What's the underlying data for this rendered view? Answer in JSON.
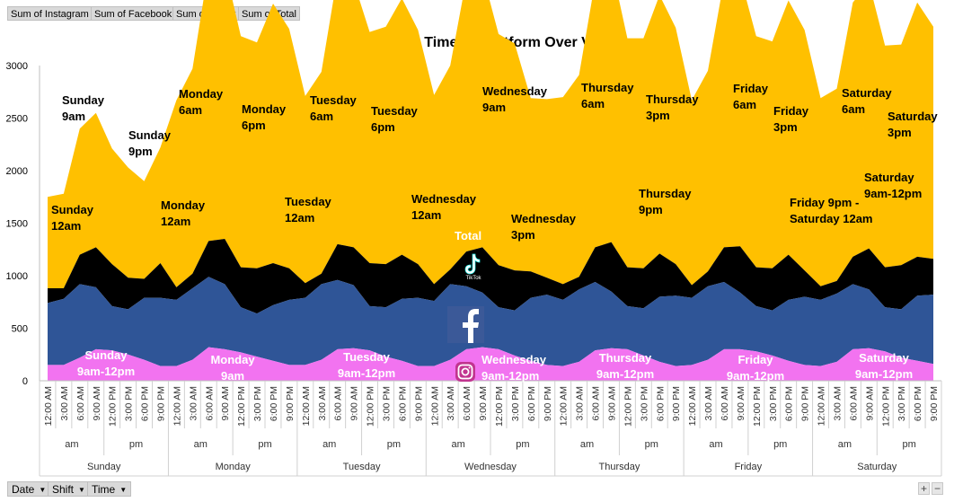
{
  "field_buttons": [
    "Sum of Instagram",
    "Sum of Facebook",
    "Sum of Tiktok",
    "Sum of Total"
  ],
  "row_buttons": [
    "Date",
    "Shift",
    "Time"
  ],
  "zoom": {
    "plus": "+",
    "minus": "−"
  },
  "chart_data": {
    "type": "area",
    "stacked": true,
    "title": "Most Active Time by Platform Over View",
    "xlabel": "",
    "ylabel": "",
    "ylim": [
      0,
      3000
    ],
    "yticks": [
      0,
      500,
      1000,
      1500,
      2000,
      2500,
      3000
    ],
    "grid": false,
    "legend": "none",
    "days": [
      "Sunday",
      "Monday",
      "Tuesday",
      "Wednesday",
      "Thursday",
      "Friday",
      "Saturday"
    ],
    "shifts": [
      "am",
      "pm"
    ],
    "times": [
      "12:00 AM",
      "3:00 AM",
      "6:00 AM",
      "9:00 AM",
      "12:00 PM",
      "3:00 PM",
      "6:00 PM",
      "9:00 PM"
    ],
    "series": [
      {
        "name": "Instagram",
        "color": "#f273f0",
        "values": [
          150,
          150,
          220,
          300,
          290,
          250,
          200,
          140,
          140,
          200,
          320,
          300,
          270,
          230,
          190,
          150,
          150,
          200,
          300,
          310,
          290,
          230,
          190,
          140,
          140,
          200,
          300,
          320,
          300,
          240,
          190,
          150,
          140,
          180,
          290,
          310,
          300,
          240,
          180,
          140,
          150,
          200,
          300,
          300,
          280,
          240,
          190,
          150,
          140,
          180,
          300,
          310,
          280,
          220,
          190,
          160
        ]
      },
      {
        "name": "Facebook",
        "color": "#2f5597",
        "values": [
          590,
          630,
          700,
          590,
          420,
          430,
          590,
          650,
          630,
          680,
          670,
          620,
          430,
          410,
          530,
          620,
          640,
          720,
          660,
          600,
          420,
          470,
          590,
          650,
          620,
          720,
          600,
          520,
          400,
          430,
          600,
          670,
          630,
          690,
          650,
          540,
          410,
          450,
          620,
          670,
          640,
          700,
          640,
          540,
          430,
          430,
          580,
          650,
          630,
          650,
          620,
          560,
          420,
          460,
          620,
          660
        ]
      },
      {
        "name": "Tiktok",
        "color": "#000000",
        "values": [
          140,
          100,
          280,
          380,
          400,
          300,
          180,
          330,
          120,
          140,
          340,
          430,
          380,
          430,
          400,
          300,
          140,
          100,
          340,
          360,
          410,
          410,
          420,
          320,
          160,
          140,
          330,
          430,
          400,
          380,
          250,
          160,
          150,
          120,
          330,
          470,
          370,
          380,
          410,
          300,
          120,
          140,
          330,
          440,
          370,
          400,
          430,
          250,
          130,
          120,
          260,
          390,
          380,
          420,
          370,
          340
        ]
      },
      {
        "name": "Total",
        "color": "#ffc000",
        "values": [
          870,
          900,
          1200,
          1280,
          1100,
          1050,
          930,
          1100,
          1780,
          1950,
          2600,
          2590,
          2200,
          2150,
          2470,
          2280,
          1780,
          1920,
          2560,
          2530,
          2200,
          2260,
          2440,
          2230,
          1800,
          1940,
          2590,
          2610,
          2200,
          2160,
          1650,
          1700,
          1780,
          1920,
          2530,
          2640,
          2180,
          2190,
          2460,
          2250,
          1760,
          1910,
          2540,
          2570,
          2200,
          2160,
          2420,
          2290,
          1790,
          1830,
          2420,
          2530,
          2110,
          2100,
          2420,
          2210
        ]
      }
    ],
    "annotations": {
      "sunday_9am": "Sunday\n9am",
      "sunday_9pm": "Sunday\n9pm",
      "sunday_12am": "Sunday\n12am",
      "monday_6am": "Monday\n6am",
      "monday_6pm": "Monday\n6pm",
      "monday_12am": "Monday\n12am",
      "tuesday_6am": "Tuesday\n6am",
      "tuesday_6pm": "Tuesday\n6pm",
      "tuesday_12am": "Tuesday\n12am",
      "wednesday_9am": "Wednesday\n9am",
      "wednesday_12am": "Wednesday\n12am",
      "wednesday_3pm": "Wednesday\n3pm",
      "thursday_6am": "Thursday\n6am",
      "thursday_3pm": "Thursday\n3pm",
      "thursday_9pm": "Thursday\n9pm",
      "friday_6am": "Friday\n6am",
      "friday_3pm": "Friday\n3pm",
      "friday_saturday": "Friday 9pm -\nSaturday 12am",
      "saturday_6am": "Saturday\n6am",
      "saturday_3pm": "Saturday\n3pm",
      "saturday_9am_12pm": "Saturday\n9am-12pm",
      "total_label": "Total",
      "tiktok_logo_text": "TikTok",
      "ig_sunday": "Sunday\n9am-12pm",
      "ig_monday": "Monday\n9am",
      "ig_tuesday": "Tuesday\n9am-12pm",
      "ig_wednesday": "Wednesday\n9am-12pm",
      "ig_thursday": "Thursday\n9am-12pm",
      "ig_friday": "Friday\n9am-12pm",
      "ig_saturday": "Saturday\n9am-12pm"
    }
  }
}
